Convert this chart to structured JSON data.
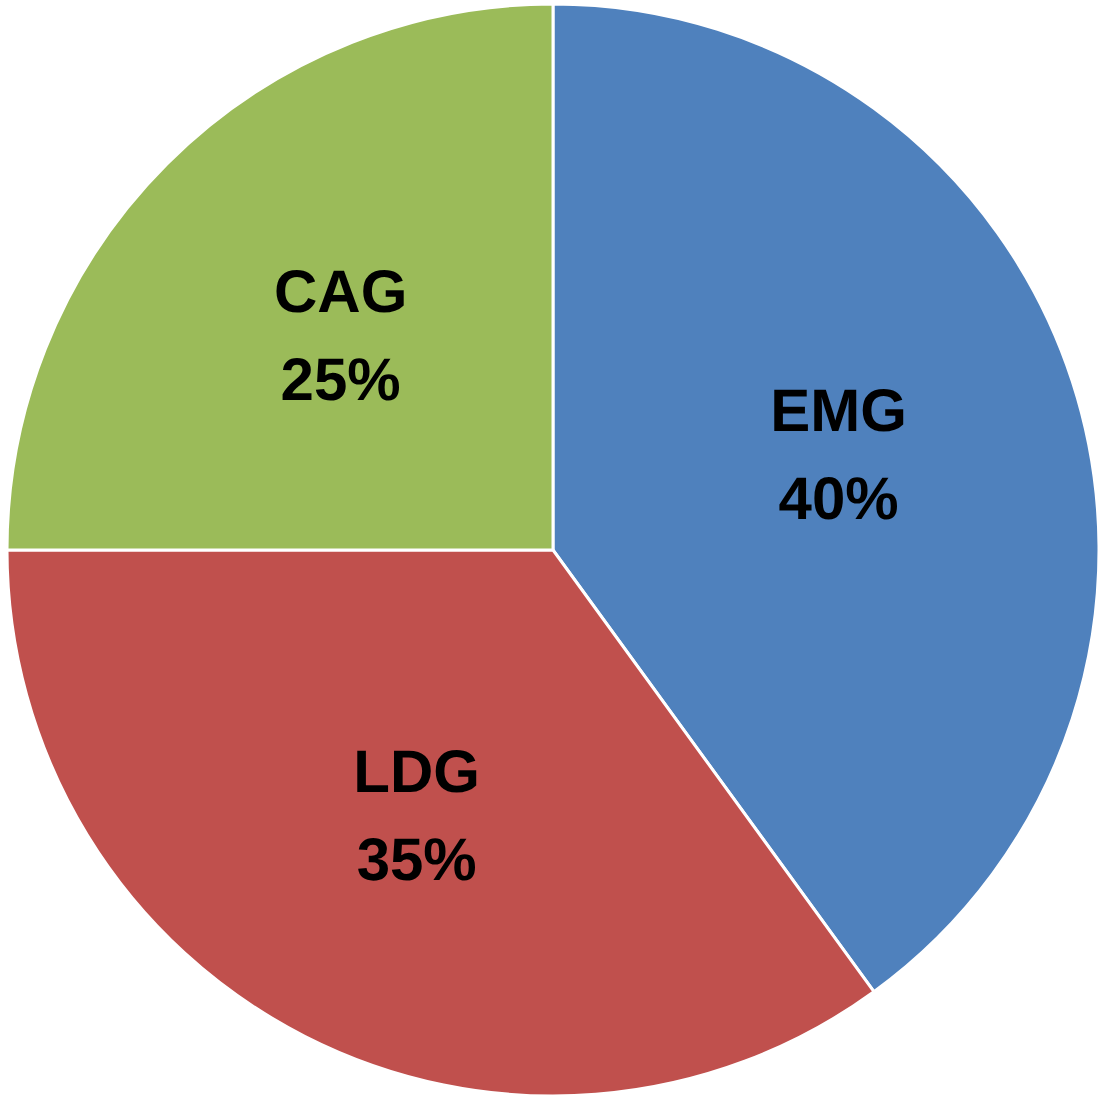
{
  "chart_data": {
    "type": "pie",
    "categories": [
      "EMG",
      "LDG",
      "CAG"
    ],
    "values": [
      40,
      35,
      25
    ],
    "colors": [
      "#4f81bd",
      "#c0504d",
      "#9bbb59"
    ],
    "value_labels": [
      "40%",
      "35%",
      "25%"
    ]
  }
}
